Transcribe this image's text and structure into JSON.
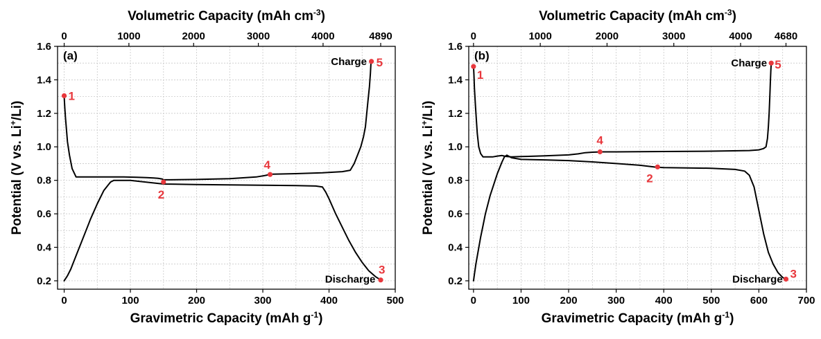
{
  "point_color": "#e8383d",
  "chart_data": [
    {
      "type": "line",
      "panel_label": "(a)",
      "xlabel": "Gravimetric Capacity",
      "xlabel_unit_pre": "(mAh g",
      "xlabel_unit_sup": "-1",
      "xlabel_unit_post": ")",
      "x2label": "Volumetric Capacity",
      "x2label_unit_pre": "(mAh cm",
      "x2label_unit_sup": "-3",
      "x2label_unit_post": ")",
      "ylabel_pre": "Potential (V vs. Li",
      "ylabel_sup": "+",
      "ylabel_post": "/Li)",
      "xlim": [
        -10,
        500
      ],
      "ylim": [
        0.15,
        1.6
      ],
      "x2lim": [
        0,
        4890
      ],
      "xticks": [
        0,
        100,
        200,
        300,
        400,
        500
      ],
      "yticks": [
        0.2,
        0.4,
        0.6,
        0.8,
        1.0,
        1.2,
        1.4,
        1.6
      ],
      "ytick_labels": [
        "0.2",
        "0.4",
        "0.6",
        "0.8",
        "1.0",
        "1.2",
        "1.4",
        "1.6"
      ],
      "x2ticks": [
        0,
        1000,
        2000,
        3000,
        4000,
        4890
      ],
      "grid": true,
      "annotations": [
        {
          "text": "Charge",
          "x": 457,
          "y": 1.51,
          "anchor": "end"
        },
        {
          "text": "Discharge",
          "x": 470,
          "y": 0.21,
          "anchor": "end"
        }
      ],
      "series": [
        {
          "x": [
            0,
            0.3,
            1,
            2,
            3.5,
            5,
            8,
            12,
            18,
            30,
            60,
            90,
            110,
            125,
            135,
            142,
            148,
            150,
            152,
            160,
            200,
            250,
            290,
            305,
            310,
            315,
            350,
            390,
            420,
            432,
            438,
            443,
            448,
            452,
            455,
            457,
            459,
            461,
            462.5,
            463.5
          ],
          "y": [
            1.31,
            1.28,
            1.23,
            1.17,
            1.1,
            1.03,
            0.95,
            0.87,
            0.82,
            0.82,
            0.82,
            0.82,
            0.818,
            0.816,
            0.814,
            0.812,
            0.808,
            0.803,
            0.803,
            0.803,
            0.805,
            0.81,
            0.82,
            0.83,
            0.835,
            0.837,
            0.84,
            0.845,
            0.852,
            0.86,
            0.9,
            0.95,
            1.0,
            1.06,
            1.12,
            1.2,
            1.28,
            1.36,
            1.44,
            1.51
          ]
        },
        {
          "x": [
            0,
            5,
            10,
            20,
            30,
            40,
            50,
            60,
            70,
            75,
            80,
            100,
            150,
            200,
            250,
            300,
            350,
            380,
            390,
            395,
            400,
            410,
            420,
            430,
            440,
            450,
            460,
            470,
            478
          ],
          "y": [
            0.2,
            0.23,
            0.27,
            0.37,
            0.47,
            0.57,
            0.66,
            0.74,
            0.79,
            0.8,
            0.8,
            0.8,
            0.778,
            0.775,
            0.773,
            0.771,
            0.769,
            0.766,
            0.76,
            0.73,
            0.69,
            0.6,
            0.52,
            0.44,
            0.37,
            0.31,
            0.26,
            0.225,
            0.205
          ]
        }
      ],
      "points": [
        {
          "label": "1",
          "x": 0,
          "y": 1.305,
          "dx": 6,
          "dy": 6
        },
        {
          "label": "2",
          "x": 150,
          "y": 0.79,
          "dx": -8,
          "dy": 24
        },
        {
          "label": "3",
          "x": 478,
          "y": 0.205,
          "dx": -3,
          "dy": -9
        },
        {
          "label": "4",
          "x": 311,
          "y": 0.835,
          "dx": -9,
          "dy": -8
        },
        {
          "label": "5",
          "x": 464,
          "y": 1.51,
          "dx": 7,
          "dy": 7
        }
      ]
    },
    {
      "type": "line",
      "panel_label": "(b)",
      "xlabel": "Gravimetric Capacity",
      "xlabel_unit_pre": "(mAh g",
      "xlabel_unit_sup": "-1",
      "xlabel_unit_post": ")",
      "x2label": "Volumetric Capacity",
      "x2label_unit_pre": "(mAh cm",
      "x2label_unit_sup": "-3",
      "x2label_unit_post": ")",
      "ylabel_pre": "Potential (V vs. Li",
      "ylabel_sup": "+",
      "ylabel_post": "/Li)",
      "xlim": [
        -10,
        700
      ],
      "ylim": [
        0.15,
        1.6
      ],
      "x2lim": [
        0,
        4680
      ],
      "xticks": [
        0,
        100,
        200,
        300,
        400,
        500,
        600,
        700
      ],
      "yticks": [
        0.2,
        0.4,
        0.6,
        0.8,
        1.0,
        1.2,
        1.4,
        1.6
      ],
      "ytick_labels": [
        "0.2",
        "0.4",
        "0.6",
        "0.8",
        "1.0",
        "1.2",
        "1.4",
        "1.6"
      ],
      "x2ticks": [
        0,
        1000,
        2000,
        3000,
        4000,
        4680
      ],
      "grid": true,
      "annotations": [
        {
          "text": "Charge",
          "x": 617,
          "y": 1.5,
          "anchor": "end"
        },
        {
          "text": "Discharge",
          "x": 650,
          "y": 0.21,
          "anchor": "end"
        }
      ],
      "series": [
        {
          "x": [
            0,
            1,
            2,
            4,
            6,
            8,
            11,
            15,
            20,
            30,
            40,
            50,
            60,
            65,
            70,
            80,
            100,
            150,
            200,
            220,
            235,
            250,
            270,
            300,
            400,
            500,
            580,
            600,
            610,
            615,
            618,
            620,
            621.5,
            623,
            624,
            625,
            626
          ],
          "y": [
            1.48,
            1.43,
            1.35,
            1.25,
            1.16,
            1.08,
            1.0,
            0.96,
            0.94,
            0.94,
            0.94,
            0.945,
            0.948,
            0.945,
            0.942,
            0.94,
            0.942,
            0.946,
            0.952,
            0.958,
            0.965,
            0.968,
            0.97,
            0.97,
            0.972,
            0.974,
            0.978,
            0.982,
            0.99,
            1.0,
            1.05,
            1.12,
            1.2,
            1.3,
            1.38,
            1.45,
            1.5
          ]
        },
        {
          "x": [
            0,
            2,
            5,
            10,
            15,
            20,
            25,
            35,
            50,
            60,
            65,
            70,
            80,
            100,
            150,
            200,
            250,
            300,
            350,
            385,
            400,
            450,
            500,
            550,
            570,
            580,
            590,
            600,
            610,
            620,
            630,
            640,
            650,
            657
          ],
          "y": [
            0.2,
            0.24,
            0.3,
            0.38,
            0.46,
            0.53,
            0.6,
            0.71,
            0.84,
            0.91,
            0.94,
            0.95,
            0.935,
            0.925,
            0.922,
            0.918,
            0.91,
            0.9,
            0.89,
            0.878,
            0.876,
            0.874,
            0.872,
            0.865,
            0.855,
            0.83,
            0.76,
            0.62,
            0.48,
            0.37,
            0.3,
            0.25,
            0.22,
            0.21
          ]
        }
      ],
      "points": [
        {
          "label": "1",
          "x": 0,
          "y": 1.48,
          "dx": 5,
          "dy": 18
        },
        {
          "label": "2",
          "x": 387,
          "y": 0.88,
          "dx": -16,
          "dy": 22
        },
        {
          "label": "3",
          "x": 657,
          "y": 0.21,
          "dx": 6,
          "dy": -2
        },
        {
          "label": "4",
          "x": 266,
          "y": 0.97,
          "dx": -5,
          "dy": -11
        },
        {
          "label": "5",
          "x": 626,
          "y": 1.5,
          "dx": 5,
          "dy": 8
        }
      ]
    }
  ]
}
